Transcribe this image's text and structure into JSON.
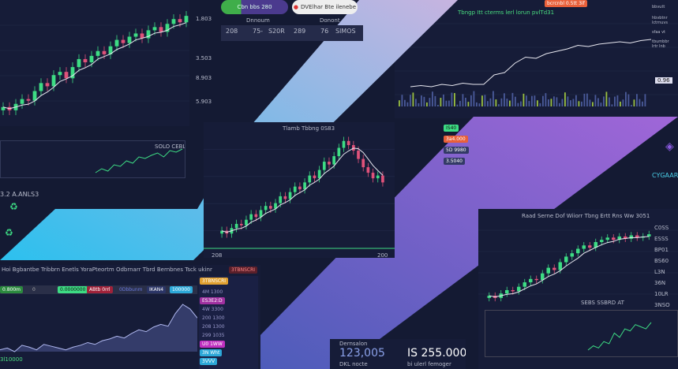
{
  "colors": {
    "bg": "#141a33",
    "up": "#3ddc84",
    "down": "#e0527a",
    "band1_top": "#c7b4e0",
    "band1_bottom": "#2cc0ee",
    "band2_top": "#a066d8",
    "band2_bottom": "#4a5cb8"
  },
  "top_left": {
    "axis": [
      "1.803",
      "3.503",
      "8.903",
      "5.903"
    ],
    "closes": [
      40,
      38,
      42,
      45,
      44,
      50,
      55,
      53,
      60,
      62,
      58,
      65,
      70,
      68,
      72,
      75,
      73,
      78,
      82,
      80,
      84,
      86,
      83,
      88,
      90,
      87,
      92,
      95,
      93,
      97
    ]
  },
  "top_center": {
    "pill1": "Cbn bbs 280",
    "pill2": "DVElhar Bte ilenebe",
    "col1": "Dnnoum",
    "col2": "Donont",
    "row1": [
      "208",
      "75-",
      "S20R"
    ],
    "row2": [
      "289",
      "76",
      "SlMOS"
    ]
  },
  "top_right": {
    "badge": "bcrcnbl 0.5tt  3if",
    "note": "Tbngp Itt cterms lerl lorun pvlTd31",
    "labels": [
      "bbvutt",
      "hbvbtnr",
      "lctrnuvs",
      "sfaa vt",
      "tbumbbr",
      "lrtr lnb"
    ],
    "price": "0.96",
    "line": [
      20,
      21,
      20,
      22,
      21,
      23,
      22,
      22,
      30,
      32,
      40,
      45,
      44,
      48,
      50,
      52,
      55,
      54,
      56,
      57,
      58,
      57,
      59,
      60
    ]
  },
  "left_mid": {
    "label": "SOLO CEBLD",
    "line": [
      30,
      35,
      32,
      40,
      38,
      45,
      42,
      50,
      48,
      52,
      55,
      50,
      58,
      56,
      60
    ]
  },
  "left_badge": "3.2 A.ANLS3",
  "center": {
    "title": "Tlamb Tbbng 0S83",
    "tags": [
      "IS40",
      "3a4.000",
      "5D 9980",
      "3.5040"
    ],
    "axis": [
      "208",
      "200"
    ],
    "closes": [
      20,
      18,
      22,
      25,
      24,
      28,
      32,
      30,
      35,
      38,
      36,
      40,
      45,
      43,
      48,
      52,
      50,
      55,
      60,
      58,
      64,
      70,
      68,
      74,
      80,
      85,
      82,
      78,
      72,
      66,
      62,
      58,
      60,
      55
    ]
  },
  "bottom_left": {
    "title": "Hoi Bgbantbe Tribbrn Enetls YoraPteortm Odbrnarr Tbrd Bernbnes Tsck ukinr",
    "right": "3TBNSCRI",
    "tabs": [
      "0.800m",
      "0",
      "0.0000000",
      "ABtb 0rrl",
      "0Dbbunm",
      "IKAN4",
      "100000"
    ],
    "labels": [
      "4M 1300",
      "ES3E2:D",
      "4W 3300",
      "200 1300",
      "208 1300",
      "299 1035",
      "U0 1WW",
      "3N Wht",
      "3VVV"
    ],
    "foot": "3l10000",
    "area": [
      30,
      32,
      28,
      35,
      33,
      30,
      36,
      34,
      32,
      30,
      33,
      35,
      38,
      36,
      40,
      42,
      45,
      43,
      48,
      52,
      50,
      55,
      58,
      56,
      70,
      80,
      75,
      65
    ]
  },
  "stats": {
    "label": "Dernsalon",
    "value1": "123,005",
    "sub1": "DKL nocte",
    "value2": "IS 255.000",
    "sub2": "bi ulerl femoger"
  },
  "right_panel": {
    "title": "Raad Serne Dof Wiiorr Tbng Ertt Rns Ww 3051",
    "side": "CYGAARL",
    "labels": [
      "C0SS",
      "ESSS",
      "BP01",
      "BS60",
      "L3N",
      "36N",
      "10LR",
      "3NSO"
    ],
    "foot": "SEBS SSBRD AT",
    "closes": [
      10,
      8,
      12,
      15,
      14,
      18,
      22,
      25,
      24,
      30,
      35,
      33,
      40,
      45,
      48,
      52,
      55,
      53,
      58,
      60,
      62,
      60,
      63,
      61,
      64,
      62,
      63,
      65
    ]
  },
  "right_mini": {
    "line": [
      10,
      12,
      11,
      14,
      13,
      18,
      16,
      20,
      19,
      22,
      21,
      20,
      23
    ]
  }
}
